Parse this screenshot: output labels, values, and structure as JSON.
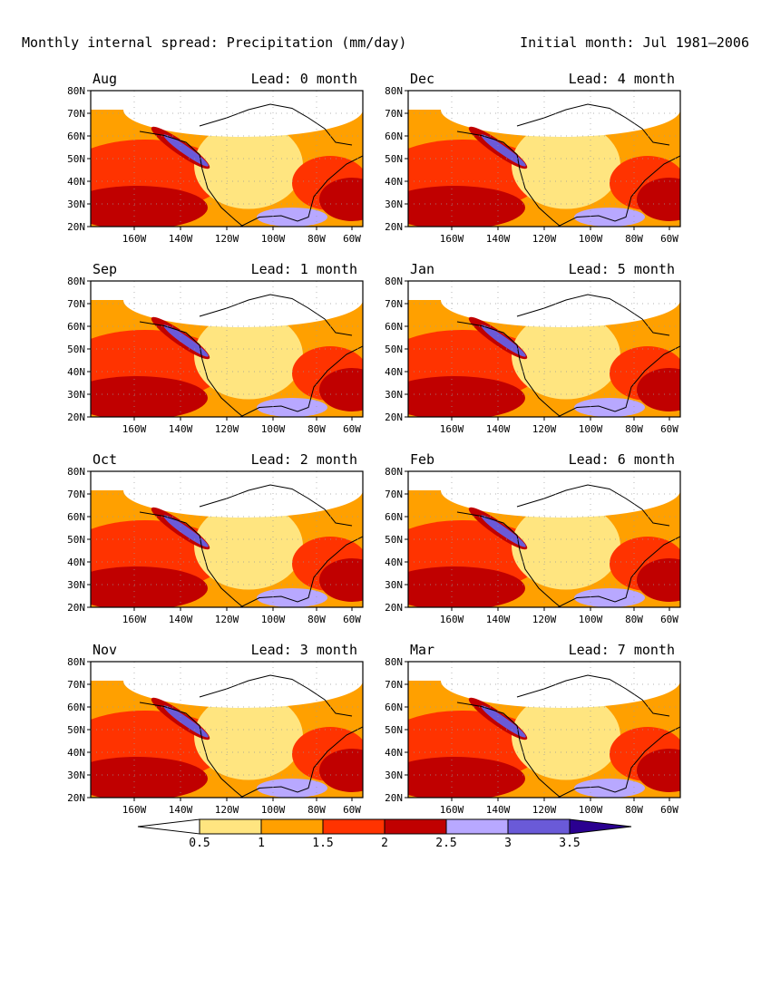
{
  "figure": {
    "title_left": "Monthly internal spread: Precipitation (mm/day)",
    "title_right": "Initial month: Jul 1981–2006"
  },
  "axis": {
    "lat_ticks": [
      "80N",
      "70N",
      "60N",
      "50N",
      "40N",
      "30N",
      "20N"
    ],
    "lon_ticks": [
      "160W",
      "140W",
      "120W",
      "100W",
      "80W",
      "60W"
    ]
  },
  "panels": [
    {
      "month": "Aug",
      "lead": "Lead: 0 month"
    },
    {
      "month": "Dec",
      "lead": "Lead: 4 month"
    },
    {
      "month": "Sep",
      "lead": "Lead: 1 month"
    },
    {
      "month": "Jan",
      "lead": "Lead: 5 month"
    },
    {
      "month": "Oct",
      "lead": "Lead: 2 month"
    },
    {
      "month": "Feb",
      "lead": "Lead: 6 month"
    },
    {
      "month": "Nov",
      "lead": "Lead: 3 month"
    },
    {
      "month": "Mar",
      "lead": "Lead: 7 month"
    }
  ],
  "colorbar": {
    "colors": [
      "#ffffff",
      "#ffe580",
      "#ffa000",
      "#ff3300",
      "#c00000",
      "#b8a8ff",
      "#6a5ad8",
      "#2a0090"
    ],
    "labels": [
      "0.5",
      "1",
      "1.5",
      "2",
      "2.5",
      "3",
      "3.5"
    ]
  },
  "map_colors": {
    "land_outline": "#000000",
    "grid_dots": "#9a9a9a"
  }
}
